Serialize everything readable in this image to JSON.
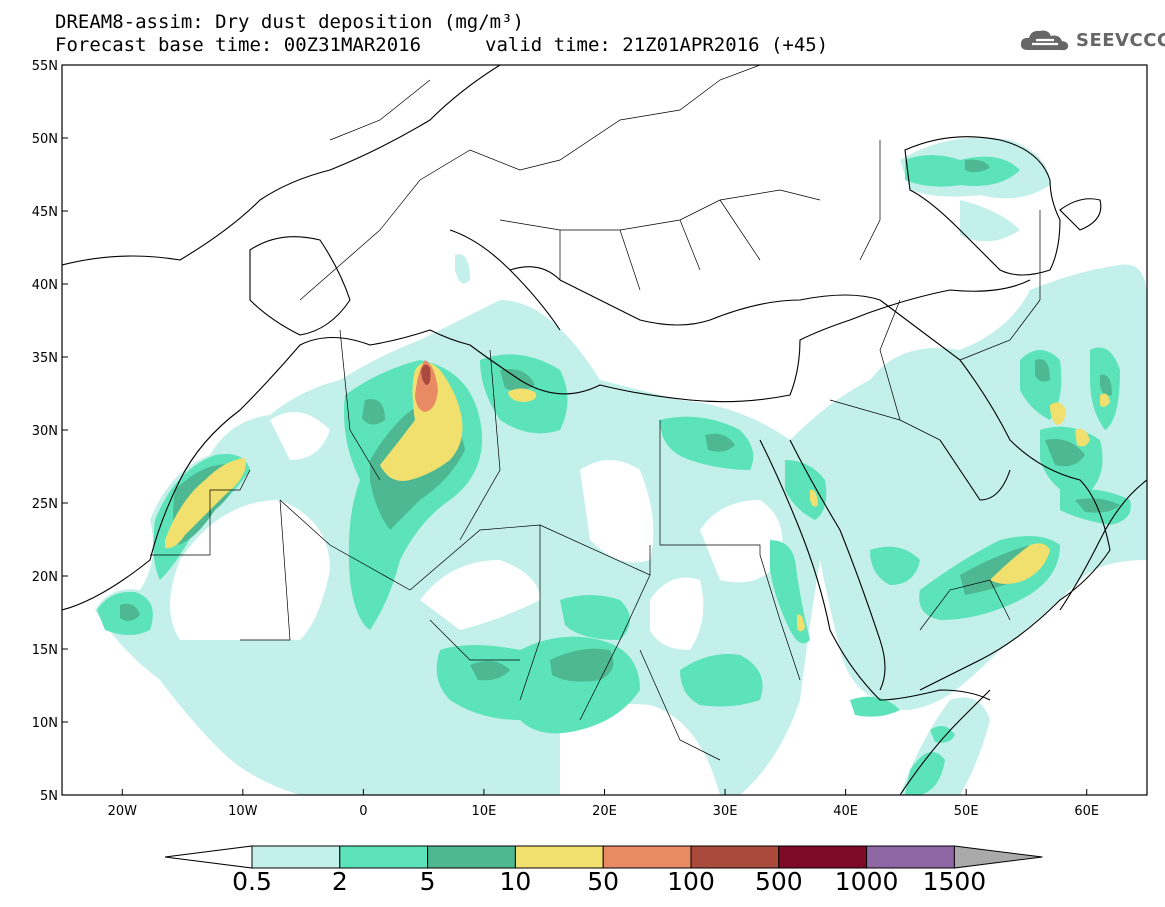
{
  "header": {
    "title": "DREAM8-assim: Dry dust deposition (mg/m³)",
    "base_time": "Forecast base time: 00Z31MAR2016",
    "valid_time": "valid time: 21Z01APR2016 (+45)"
  },
  "logo": {
    "text": "SEEVCCC",
    "icon": "cloud-icon"
  },
  "axes": {
    "lat_labels": [
      "55N",
      "50N",
      "45N",
      "40N",
      "35N",
      "30N",
      "25N",
      "20N",
      "15N",
      "10N",
      "5N"
    ],
    "lat_values": [
      55,
      50,
      45,
      40,
      35,
      30,
      25,
      20,
      15,
      10,
      5
    ],
    "lon_labels": [
      "20W",
      "10W",
      "0",
      "10E",
      "20E",
      "30E",
      "40E",
      "50E",
      "60E"
    ],
    "lon_values": [
      -20,
      -10,
      0,
      10,
      20,
      30,
      40,
      50,
      60
    ],
    "lon_range": [
      -25,
      65
    ],
    "lat_range": [
      5,
      55
    ]
  },
  "colorbar": {
    "labels": [
      "0.5",
      "2",
      "5",
      "10",
      "50",
      "100",
      "500",
      "1000",
      "1500"
    ],
    "colors": [
      "#c3f0ea",
      "#5ce3b9",
      "#4eb892",
      "#f2e06e",
      "#e88a64",
      "#aa4a3d",
      "#7d0a26",
      "#8f67a4",
      "#aaaaaa"
    ],
    "under_color": "#ffffff",
    "over_color": "#aaaaaa"
  }
}
